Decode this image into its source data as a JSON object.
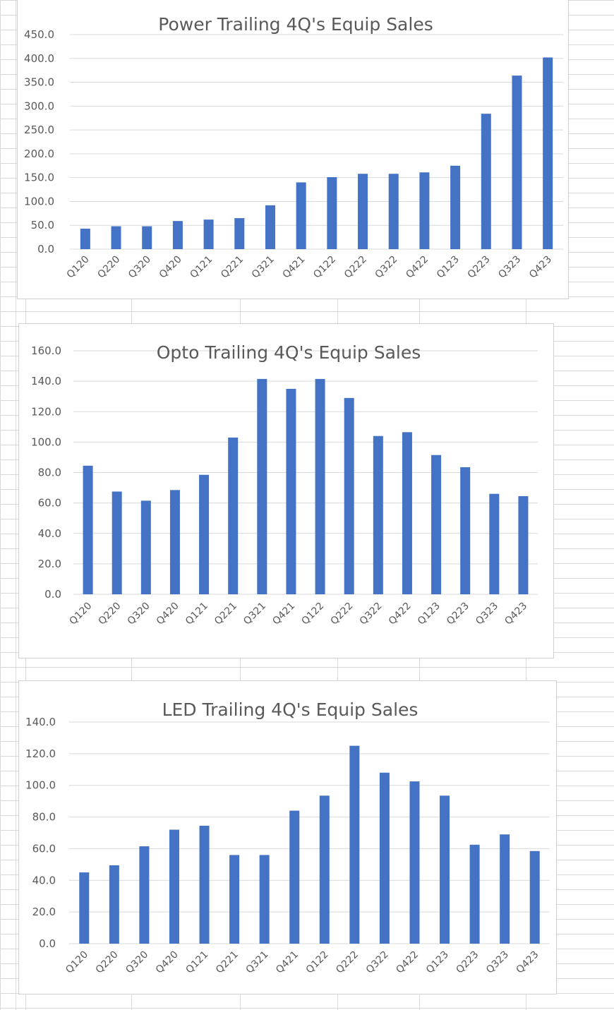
{
  "chart_data": [
    {
      "type": "bar",
      "title": "Power Trailing 4Q's Equip Sales",
      "categories": [
        "Q120",
        "Q220",
        "Q320",
        "Q420",
        "Q121",
        "Q221",
        "Q321",
        "Q421",
        "Q122",
        "Q222",
        "Q322",
        "Q422",
        "Q123",
        "Q223",
        "Q323",
        "Q423"
      ],
      "values": [
        43.0,
        48.0,
        48.0,
        59.0,
        62.0,
        65.0,
        92.0,
        140.0,
        151.0,
        158.0,
        158.0,
        161.0,
        175.0,
        284.0,
        364.0,
        402.0
      ],
      "yticks": [
        "0.0",
        "50.0",
        "100.0",
        "150.0",
        "200.0",
        "250.0",
        "300.0",
        "350.0",
        "400.0",
        "450.0"
      ],
      "ylim": [
        0,
        450
      ],
      "grid": true,
      "color": "#4472c4"
    },
    {
      "type": "bar",
      "title": "Opto Trailing 4Q's Equip Sales",
      "categories": [
        "Q120",
        "Q220",
        "Q320",
        "Q420",
        "Q121",
        "Q221",
        "Q321",
        "Q421",
        "Q122",
        "Q222",
        "Q322",
        "Q422",
        "Q123",
        "Q223",
        "Q323",
        "Q423"
      ],
      "values": [
        84.5,
        67.5,
        61.5,
        68.5,
        78.5,
        103.0,
        141.5,
        135.0,
        141.5,
        129.0,
        104.0,
        106.5,
        91.5,
        83.5,
        66.0,
        64.5
      ],
      "yticks": [
        "0.0",
        "20.0",
        "40.0",
        "60.0",
        "80.0",
        "100.0",
        "120.0",
        "140.0",
        "160.0"
      ],
      "ylim": [
        0,
        160
      ],
      "grid": true,
      "color": "#4472c4"
    },
    {
      "type": "bar",
      "title": "LED Trailing 4Q's Equip Sales",
      "categories": [
        "Q120",
        "Q220",
        "Q320",
        "Q420",
        "Q121",
        "Q221",
        "Q321",
        "Q421",
        "Q122",
        "Q222",
        "Q322",
        "Q422",
        "Q123",
        "Q223",
        "Q323",
        "Q423"
      ],
      "values": [
        45.0,
        49.5,
        61.5,
        72.0,
        74.5,
        56.0,
        56.0,
        84.0,
        93.5,
        125.0,
        108.0,
        102.5,
        93.5,
        62.5,
        69.0,
        58.5
      ],
      "yticks": [
        "0.0",
        "20.0",
        "40.0",
        "60.0",
        "80.0",
        "100.0",
        "120.0",
        "140.0"
      ],
      "ylim": [
        0,
        140
      ],
      "grid": true,
      "color": "#4472c4"
    }
  ]
}
